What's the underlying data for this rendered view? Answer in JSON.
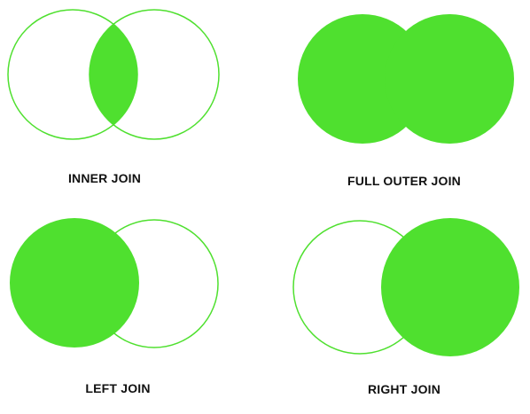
{
  "colors": {
    "fill": "#4fe02f",
    "stroke": "#4fe02f",
    "background": "#ffffff"
  },
  "diagrams": [
    {
      "id": "inner",
      "label": "INNER JOIN",
      "fill": "intersection"
    },
    {
      "id": "full",
      "label": "FULL OUTER JOIN",
      "fill": "both"
    },
    {
      "id": "left",
      "label": "LEFT JOIN",
      "fill": "left"
    },
    {
      "id": "right",
      "label": "RIGHT JOIN",
      "fill": "right"
    }
  ]
}
